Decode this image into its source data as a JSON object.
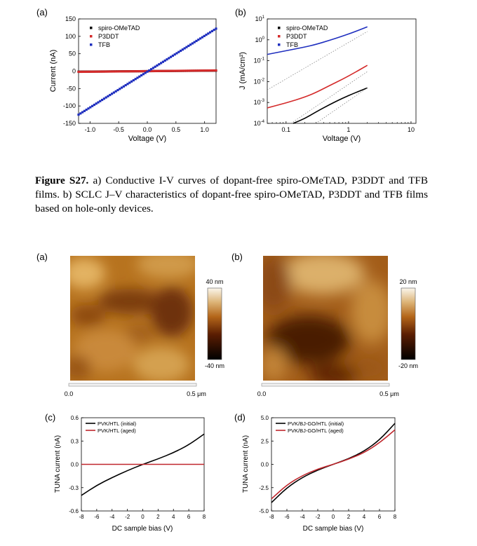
{
  "figure_s27": {
    "panel_a": {
      "label": "(a)",
      "xlabel": "Voltage (V)",
      "ylabel": "Current (nA)"
    },
    "panel_b": {
      "label": "(b)",
      "xlabel": "Voltage (V)",
      "ylabel": "J (mA/cm²)"
    },
    "caption": {
      "label": "Figure S27.",
      "text": " a) Conductive I-V curves of dopant-free spiro-OMeTAD, P3DDT and TFB films. b) SCLC J–V characteristics of dopant-free spiro-OMeTAD, P3DDT and TFB films based on hole-only devices."
    }
  },
  "afm": {
    "a": {
      "label": "(a)",
      "scale_top": "40 nm",
      "scale_bottom": "-40 nm",
      "x_start": "0.0",
      "x_end": "0.5 μm"
    },
    "b": {
      "label": "(b)",
      "scale_top": "20 nm",
      "scale_bottom": "-20 nm",
      "x_start": "0.0",
      "x_end": "0.5 μm"
    }
  },
  "tuna": {
    "c": {
      "label": "(c)",
      "xlabel": "DC sample bias (V)",
      "ylabel": "TUNA current (nA)"
    },
    "d": {
      "label": "(d)",
      "xlabel": "DC sample bias (V)",
      "ylabel": "TUNA current (nA)"
    }
  },
  "colors": {
    "black": "#000000",
    "red": "#d42a2a",
    "blue": "#1f2fbf",
    "tuna_red": "#c0272d"
  },
  "chart_data": [
    {
      "id": "a",
      "type": "scatter",
      "xlabel": "Voltage (V)",
      "ylabel": "Current (nA)",
      "xlim": [
        -1.2,
        1.2
      ],
      "ylim": [
        -150,
        150
      ],
      "xticks": [
        -1.0,
        -0.5,
        0.0,
        0.5,
        1.0
      ],
      "xticklabels": [
        "-1.0",
        "-0.5",
        "0.0",
        "0.5",
        "1.0"
      ],
      "yticks": [
        -150,
        -100,
        -50,
        0,
        50,
        100,
        150
      ],
      "yticklabels": [
        "-150",
        "-100",
        "-50",
        "0",
        "50",
        "100",
        "150"
      ],
      "legend_position": "top-left",
      "series": [
        {
          "name": "spiro-OMeTAD",
          "color": "#000000",
          "x": [
            -1.2,
            1.2
          ],
          "y": [
            -1.5,
            1.5
          ]
        },
        {
          "name": "P3DDT",
          "color": "#d42a2a",
          "x": [
            -1.2,
            1.2
          ],
          "y": [
            -2,
            2
          ]
        },
        {
          "name": "TFB",
          "color": "#1f2fbf",
          "x": [
            -1.2,
            1.2
          ],
          "y": [
            -125,
            122
          ]
        }
      ]
    },
    {
      "id": "b",
      "type": "line",
      "xscale": "log",
      "yscale": "log",
      "xlabel": "Voltage (V)",
      "ylabel": "J (mA/cm²)",
      "xlim": [
        0.05,
        12
      ],
      "ylim": [
        0.0001,
        10
      ],
      "xticks": [
        0.1,
        1,
        10
      ],
      "xticklabels": [
        "0.1",
        "1",
        "10"
      ],
      "yticks": [
        0.0001,
        0.001,
        0.01,
        0.1,
        1,
        10
      ],
      "ytick_exponents": [
        "-4",
        "-3",
        "-2",
        "-1",
        "0",
        "1"
      ],
      "legend_position": "top-left",
      "series": [
        {
          "name": "spiro-OMeTAD",
          "color": "#000000",
          "x": [
            0.13,
            0.2,
            0.3,
            0.5,
            0.8,
            1.2,
            2.0
          ],
          "y": [
            0.0001,
            0.00017,
            0.00035,
            0.0008,
            0.0016,
            0.0027,
            0.005
          ]
        },
        {
          "name": "P3DDT",
          "color": "#d42a2a",
          "x": [
            0.05,
            0.1,
            0.2,
            0.3,
            0.5,
            0.8,
            1.2,
            2.0
          ],
          "y": [
            0.00055,
            0.00095,
            0.0018,
            0.003,
            0.0065,
            0.013,
            0.025,
            0.06
          ]
        },
        {
          "name": "TFB",
          "color": "#1f2fbf",
          "x": [
            0.05,
            0.1,
            0.2,
            0.3,
            0.5,
            0.8,
            1.2,
            2.0
          ],
          "y": [
            0.2,
            0.3,
            0.45,
            0.6,
            0.95,
            1.5,
            2.3,
            4.2
          ]
        }
      ]
    },
    {
      "id": "c",
      "type": "line",
      "xlabel": "DC sample bias (V)",
      "ylabel": "TUNA current (nA)",
      "xlim": [
        -8,
        8
      ],
      "ylim": [
        -0.6,
        0.6
      ],
      "xticks": [
        -8,
        -6,
        -4,
        -2,
        0,
        2,
        4,
        6,
        8
      ],
      "yticks": [
        -0.6,
        -0.3,
        0.0,
        0.3,
        0.6
      ],
      "yticklabels": [
        "-0.6",
        "-0.3",
        "0.0",
        "0.3",
        "0.6"
      ],
      "legend_position": "top-left",
      "series": [
        {
          "name": "PVK/HTL (initial)",
          "color": "#000000",
          "x": [
            -8,
            -6,
            -4,
            -2,
            0,
            2,
            4,
            6,
            8
          ],
          "y": [
            -0.4,
            -0.27,
            -0.17,
            -0.08,
            0.0,
            0.07,
            0.15,
            0.25,
            0.39
          ]
        },
        {
          "name": "PVK/HTL (aged)",
          "color": "#c0272d",
          "x": [
            -8,
            8
          ],
          "y": [
            0.0,
            0.0
          ]
        }
      ]
    },
    {
      "id": "d",
      "type": "line",
      "xlabel": "DC sample bias (V)",
      "ylabel": "TUNA current (nA)",
      "xlim": [
        -8,
        8
      ],
      "ylim": [
        -5.0,
        5.0
      ],
      "xticks": [
        -8,
        -6,
        -4,
        -2,
        0,
        2,
        4,
        6,
        8
      ],
      "yticks": [
        -5.0,
        -2.5,
        0.0,
        2.5,
        5.0
      ],
      "yticklabels": [
        "-5.0",
        "-2.5",
        "0.0",
        "2.5",
        "5.0"
      ],
      "legend_position": "top-left",
      "series": [
        {
          "name": "PVK/BJ-GO/HTL (initial)",
          "color": "#000000",
          "x": [
            -8,
            -6,
            -4,
            -2,
            0,
            2,
            4,
            6,
            8
          ],
          "y": [
            -4.1,
            -2.5,
            -1.4,
            -0.6,
            0.0,
            0.6,
            1.4,
            2.6,
            4.4
          ]
        },
        {
          "name": "PVK/BJ-GO/HTL (aged)",
          "color": "#c0272d",
          "x": [
            -8,
            -6,
            -4,
            -2,
            0,
            2,
            4,
            6,
            8
          ],
          "y": [
            -3.7,
            -2.2,
            -1.2,
            -0.5,
            0.0,
            0.55,
            1.25,
            2.3,
            3.7
          ]
        }
      ]
    }
  ]
}
